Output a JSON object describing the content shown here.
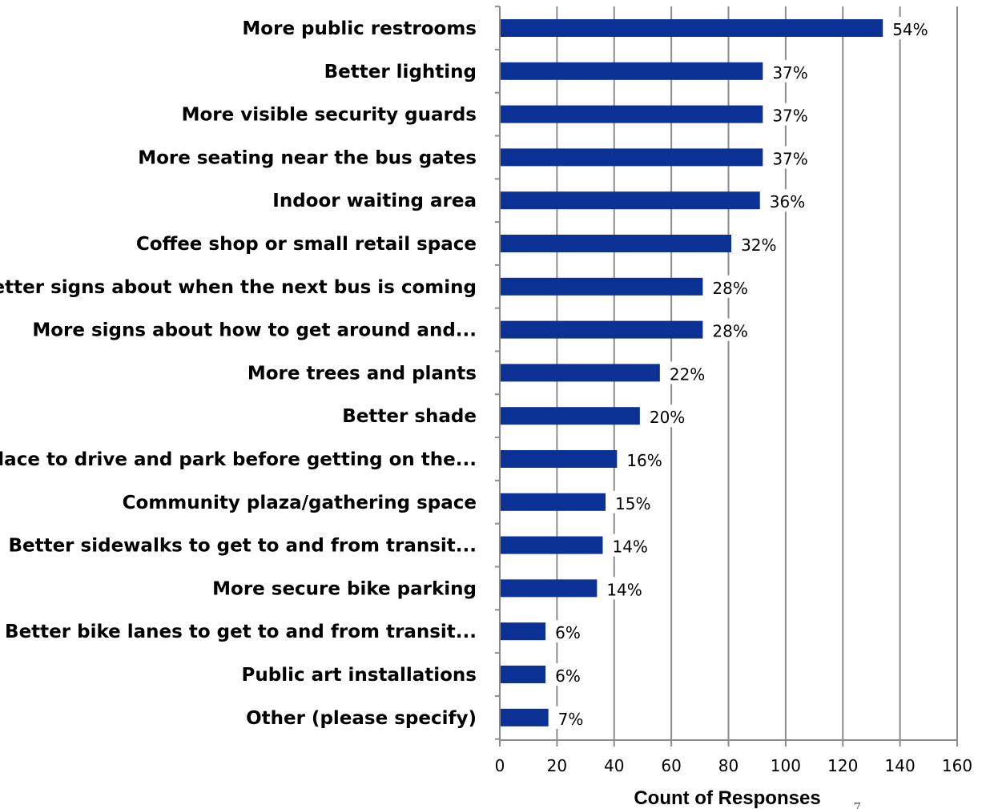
{
  "chart_data": {
    "type": "bar",
    "orientation": "horizontal",
    "categories": [
      "More public restrooms",
      "Better lighting",
      "More visible security guards",
      "More seating near the bus gates",
      "Indoor waiting area",
      "Coffee shop or small retail space",
      "Better signs about when the next bus is coming",
      "More signs about how to get around and...",
      "More trees and plants",
      "Better shade",
      "Place to drive and park before getting on the...",
      "Community plaza/gathering space",
      "Better sidewalks to get to and from transit...",
      "More secure bike parking",
      "Better bike lanes to get to and from transit...",
      "Public art installations",
      "Other (please specify)"
    ],
    "values": [
      134,
      92,
      92,
      92,
      91,
      81,
      71,
      71,
      56,
      49,
      41,
      37,
      36,
      34,
      16,
      16,
      17
    ],
    "data_labels": [
      "54%",
      "37%",
      "37%",
      "37%",
      "36%",
      "32%",
      "28%",
      "28%",
      "22%",
      "20%",
      "16%",
      "15%",
      "14%",
      "14%",
      "6%",
      "6%",
      "7%"
    ],
    "xlabel": "Count of Responses",
    "ylabel": "",
    "xlim": [
      0,
      160
    ],
    "xticks": [
      "0",
      "20",
      "40",
      "60",
      "80",
      "100",
      "120",
      "140",
      "160"
    ],
    "grid": "vertical",
    "bar_color": "#0b3194",
    "grid_color": "#8c8c8c"
  },
  "page_number": "7"
}
